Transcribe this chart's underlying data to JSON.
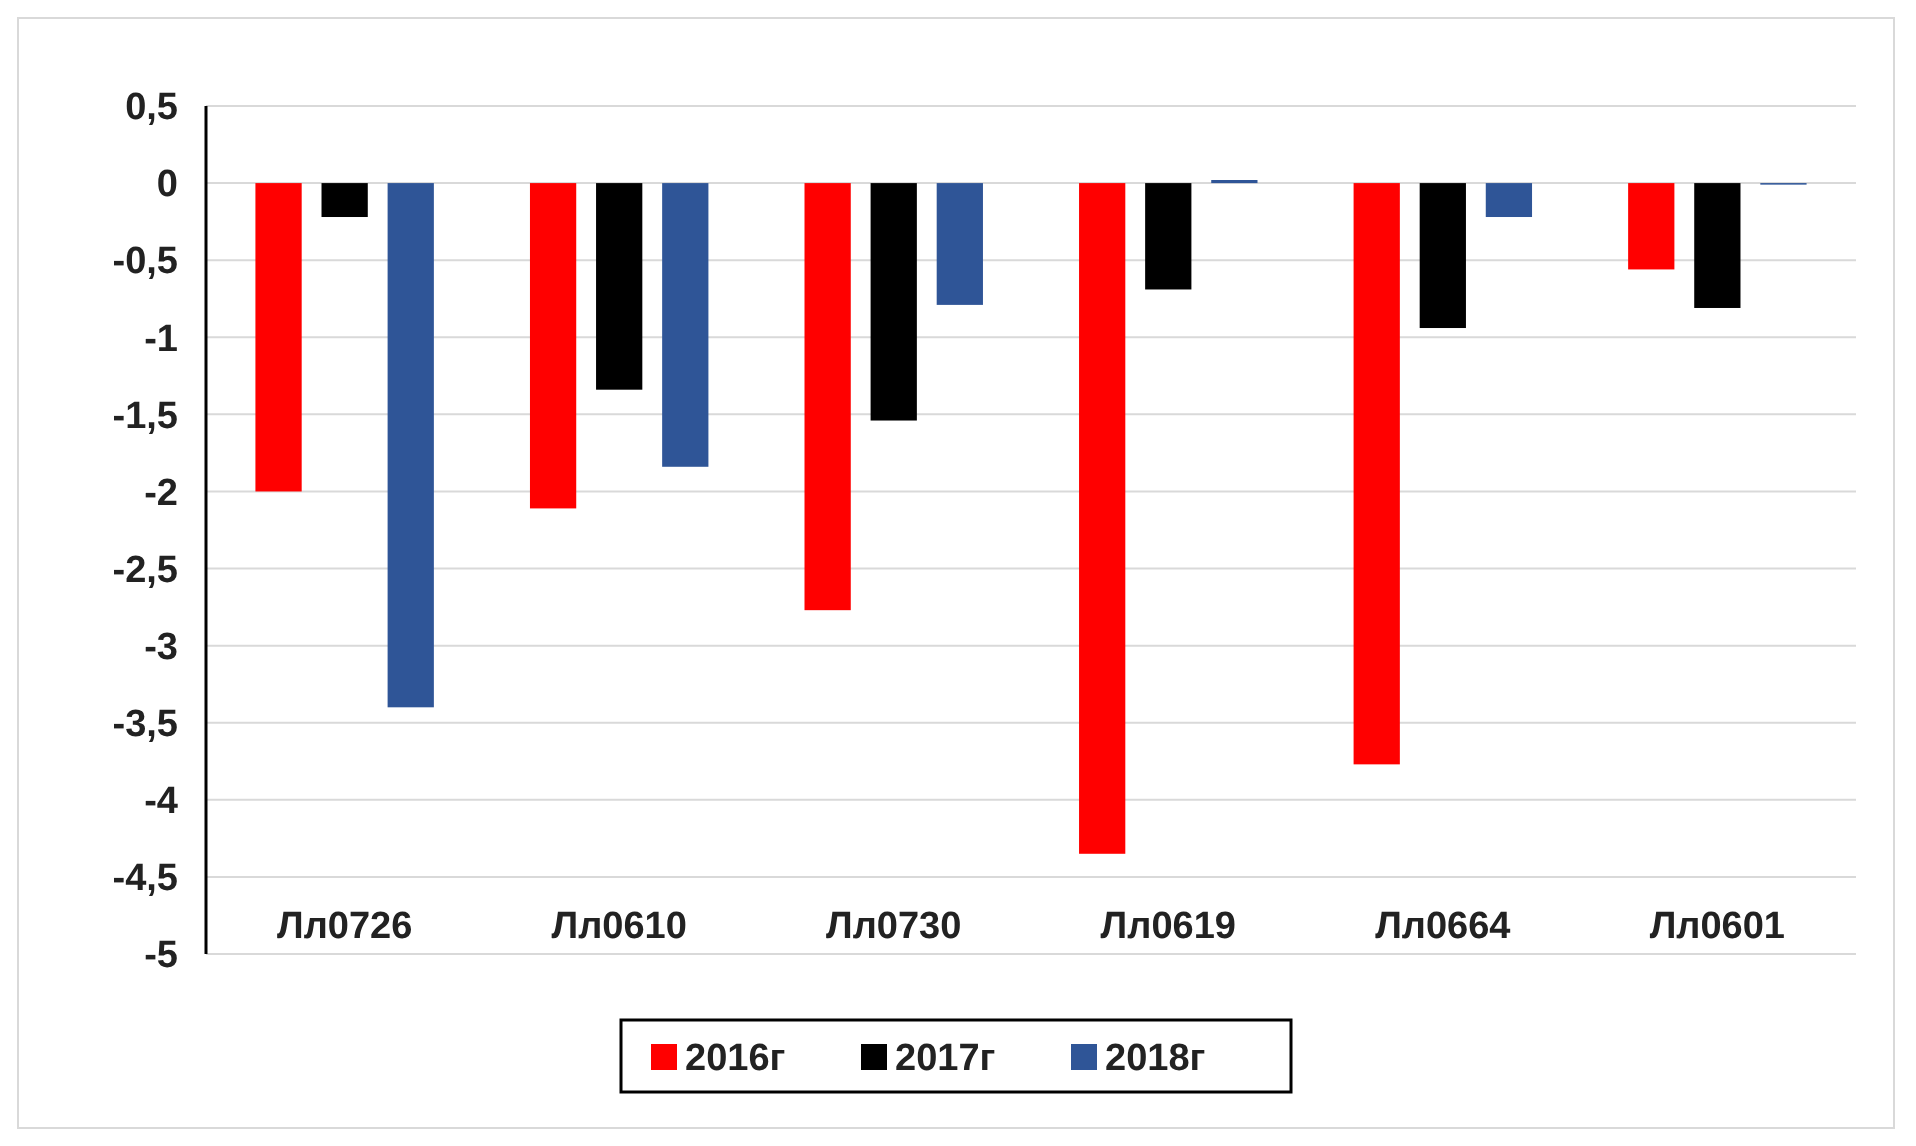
{
  "chart_data": {
    "type": "bar",
    "categories": [
      "Лл0726",
      "Лл0610",
      "Лл0730",
      "Лл0619",
      "Лл0664",
      "Лл0601"
    ],
    "series": [
      {
        "name": "2016г",
        "color": "#ff0000",
        "values": [
          -2.0,
          -2.11,
          -2.77,
          -4.35,
          -3.77,
          -0.56
        ]
      },
      {
        "name": "2017г",
        "color": "#000000",
        "values": [
          -0.22,
          -1.34,
          -1.54,
          -0.69,
          -0.94,
          -0.81
        ]
      },
      {
        "name": "2018г",
        "color": "#2f5597",
        "values": [
          -3.4,
          -1.84,
          -0.79,
          0.02,
          -0.22,
          -0.01
        ]
      }
    ],
    "ylim": [
      -5,
      0.5
    ],
    "yticks": [
      {
        "value": 0.5,
        "label": "0,5"
      },
      0,
      {
        "value": -0.5,
        "label": "-0,5"
      },
      -1,
      {
        "value": -1.5,
        "label": "-1,5"
      },
      -2,
      {
        "value": -2.5,
        "label": "-2,5"
      },
      -3,
      {
        "value": -3.5,
        "label": "-3,5"
      },
      -4,
      {
        "value": -4.5,
        "label": "-4,5"
      },
      -5
    ],
    "grid": "y",
    "legend": "bottom"
  }
}
